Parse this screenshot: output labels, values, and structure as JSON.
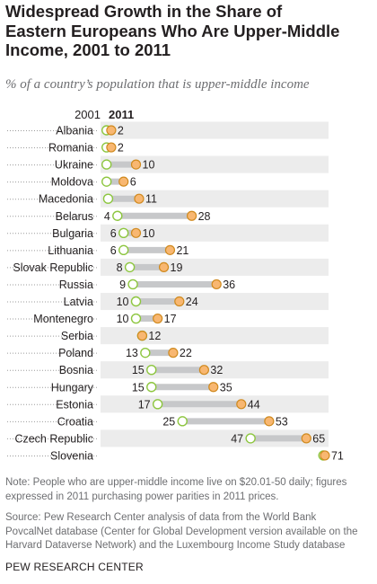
{
  "title": "Widespread Growth in the Share of Eastern Europeans Who Are Upper-Middle Income, 2001 to 2011",
  "subtitle": "% of a country’s population that is upper-middle income",
  "note": "Note: People who are upper-middle income live on $20.01-50 daily; figures expressed in 2011 purchasing power parities in 2011 prices.",
  "source": "Source: Pew Research Center analysis of data from the World Bank PovcalNet database (Center for Global Development version available on the Harvard Dataverse Network) and the Luxembourg Income Study database",
  "org": "PEW RESEARCH CENTER",
  "colors": {
    "dot_2001": "#ffffff",
    "dot_2001_stroke": "#8dc63f",
    "dot_2011": "#f8b771",
    "dot_2011_stroke": "#d08a1f",
    "connector": "#c7c8ca",
    "row_band": "#ececec"
  },
  "chart_data": {
    "type": "dot",
    "legend": [
      "2001",
      "2011"
    ],
    "categories": [
      "Albania",
      "Romania",
      "Ukraine",
      "Moldova",
      "Macedonia",
      "Belarus",
      "Bulgaria",
      "Lithuania",
      "Slovak Republic",
      "Russia",
      "Latvia",
      "Montenegro",
      "Serbia",
      "Poland",
      "Bosnia",
      "Hungary",
      "Estonia",
      "Croatia",
      "Czech Republic",
      "Slovenia"
    ],
    "series": [
      {
        "name": "2001",
        "values": [
          0.5,
          0.5,
          0.5,
          0.5,
          1,
          4,
          6,
          6,
          8,
          9,
          10,
          10,
          12,
          13,
          15,
          15,
          17,
          25,
          47,
          70.5
        ]
      },
      {
        "name": "2011",
        "values": [
          2,
          2,
          10,
          6,
          11,
          28,
          10,
          21,
          19,
          36,
          24,
          17,
          12,
          22,
          32,
          35,
          44,
          53,
          65,
          71
        ]
      }
    ],
    "labels_2001": [
      "",
      "",
      "",
      "",
      "",
      "4",
      "6",
      "6",
      "8",
      "9",
      "10",
      "10",
      "",
      "13",
      "15",
      "15",
      "17",
      "25",
      "47",
      ""
    ],
    "labels_2011": [
      "2",
      "2",
      "10",
      "6",
      "11",
      "28",
      "10",
      "21",
      "19",
      "36",
      "24",
      "17",
      "12",
      "22",
      "32",
      "35",
      "44",
      "53",
      "65",
      "71"
    ],
    "xlim": [
      0,
      72
    ]
  }
}
